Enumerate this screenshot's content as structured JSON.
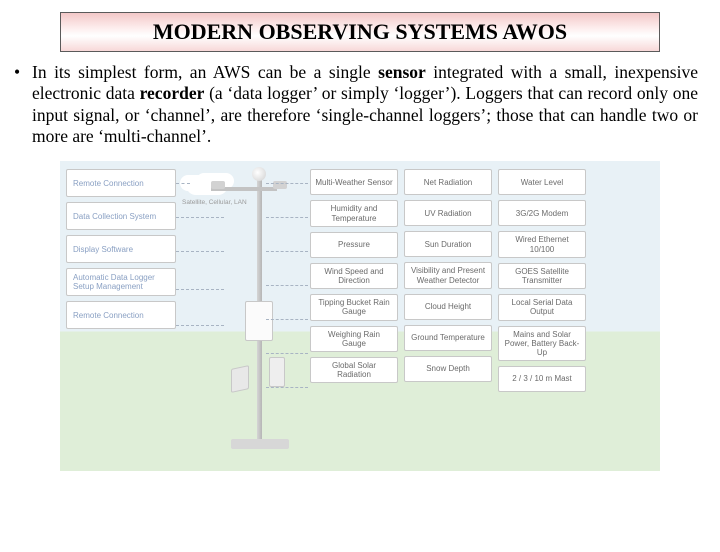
{
  "title": "MODERN OBSERVING SYSTEMS AWOS",
  "paragraph_parts": {
    "p1": "In its simplest form, an AWS can be a single ",
    "b1": "sensor",
    "p2": " integrated with a small, inexpensive electronic data ",
    "b2": "recorder",
    "p3": " (a ‘data logger’ or simply ‘logger’). Loggers that can record only one input signal, or ‘channel’, are therefore ‘single-channel loggers’; those that can handle two or more are ‘multi-channel’."
  },
  "diagram": {
    "cloud_label": "Satellite, Cellular, LAN",
    "left_items": [
      "Remote Connection",
      "Data Collection System",
      "Display Software",
      "Automatic Data Logger Setup Management",
      "Remote Connection"
    ],
    "col1": [
      "Multi-Weather Sensor",
      "Humidity and Temperature",
      "Pressure",
      "Wind Speed and Direction",
      "Tipping Bucket Rain Gauge",
      "Weighing Rain Gauge",
      "Global Solar Radiation"
    ],
    "col2": [
      "Net Radiation",
      "UV Radiation",
      "Sun Duration",
      "Visibility and Present Weather Detector",
      "Cloud Height",
      "Ground Temperature",
      "Snow Depth"
    ],
    "col3": [
      "Water Level",
      "3G/2G Modem",
      "Wired Ethernet 10/100",
      "GOES Satellite Transmitter",
      "Local Serial Data Output",
      "Mains and Solar Power, Battery Back-Up",
      "2 / 3 / 10 m Mast"
    ],
    "colors": {
      "sky": "#e8f1f6",
      "ground": "#dfeed8",
      "cell_border": "#c8c8c8",
      "cell_text": "#6b6b6b",
      "left_text": "#8aa0c3",
      "dash": "#a8b4c3"
    }
  }
}
